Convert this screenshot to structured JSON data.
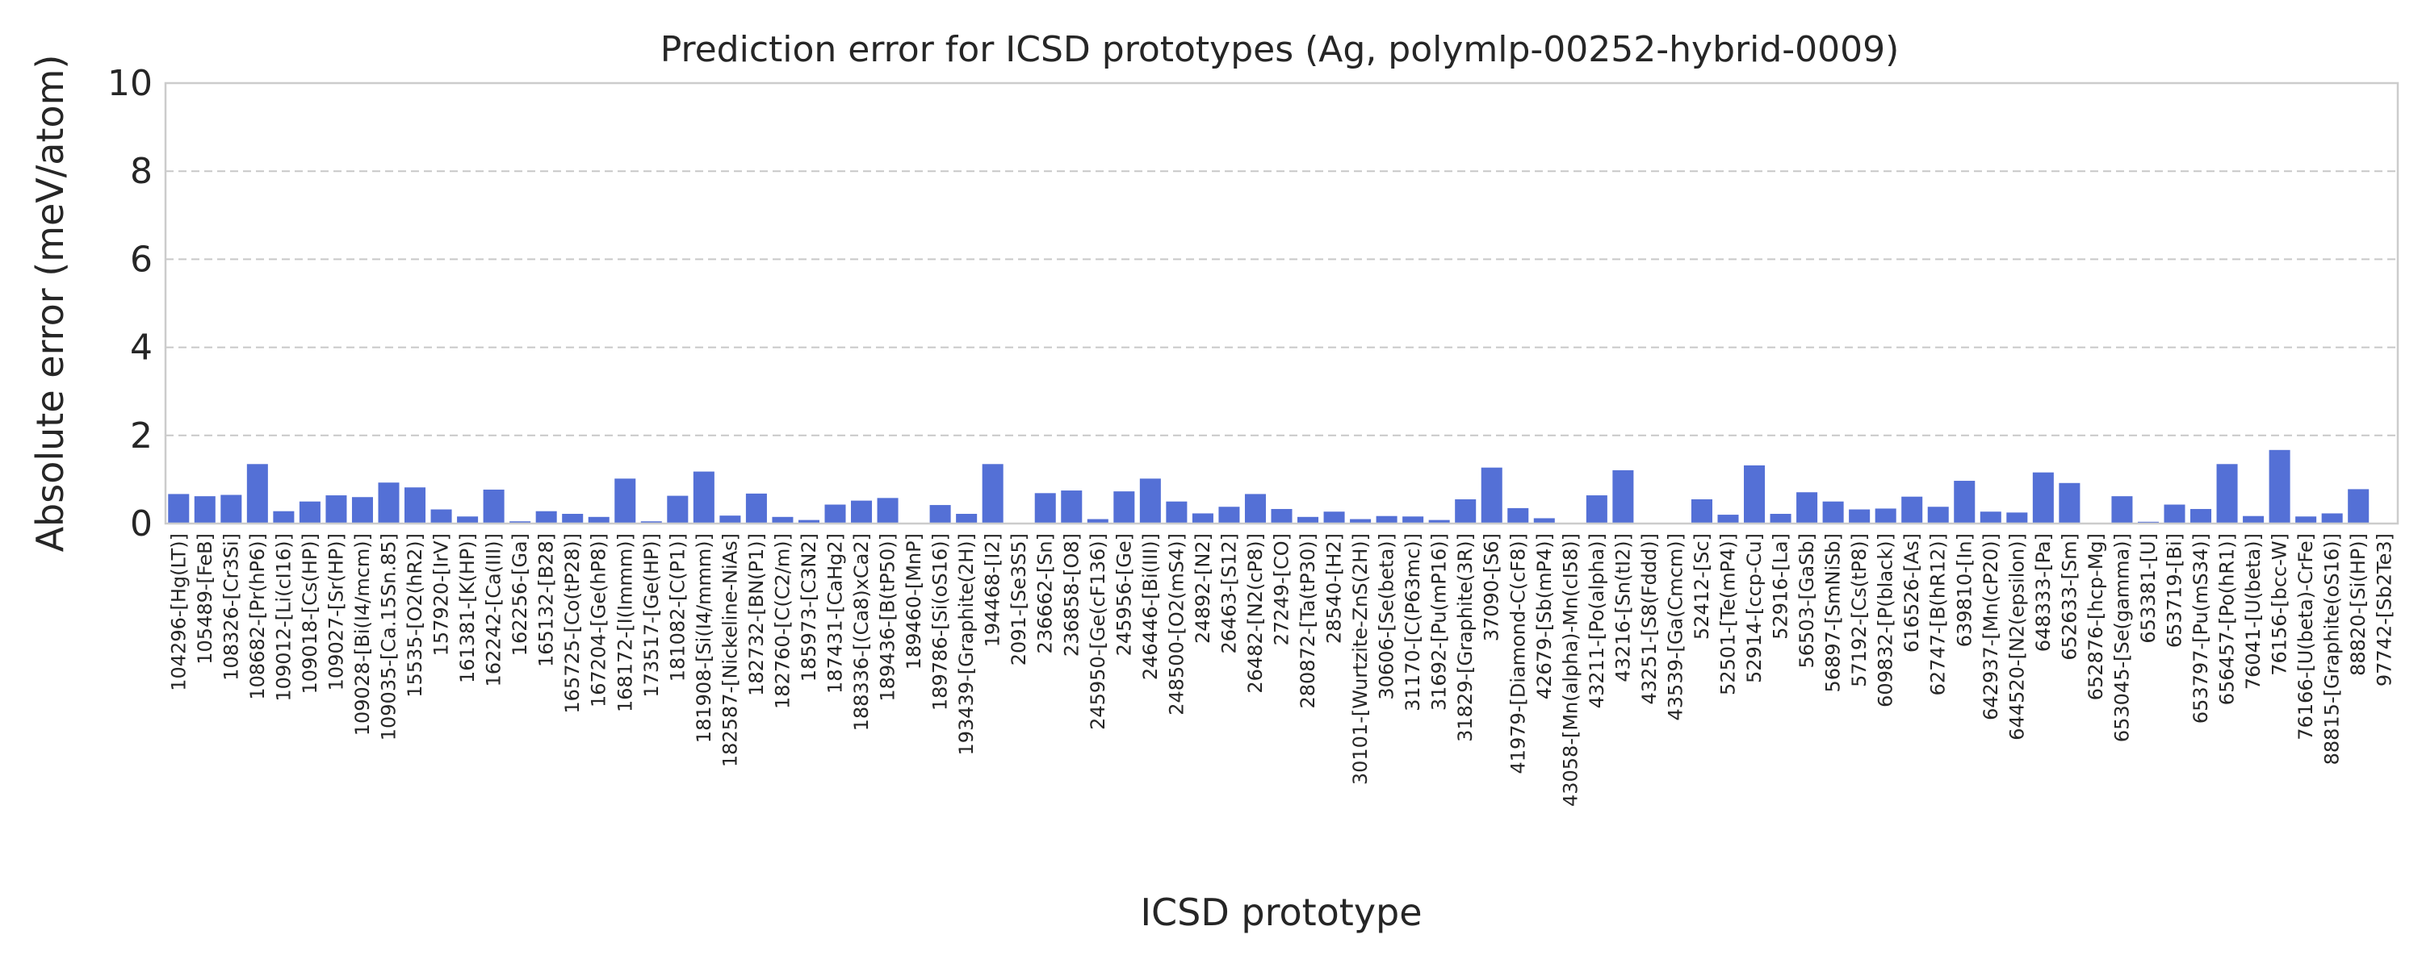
{
  "chart_data": {
    "type": "bar",
    "title": "Prediction error for ICSD prototypes (Ag, polymlp-00252-hybrid-0009)",
    "xlabel": "ICSD prototype",
    "ylabel": "Absolute error (meV/atom)",
    "ylim": [
      0,
      10
    ],
    "yticks": [
      "0",
      "2",
      "4",
      "6",
      "8",
      "10"
    ],
    "grid": "y-dashed",
    "bar_color": "#5470d6",
    "categories": [
      "104296-[Hg(LT)]",
      "105489-[FeB]",
      "108326-[Cr3Si]",
      "108682-[Pr(hP6)]",
      "109012-[Li(cI16)]",
      "109018-[Cs(HP)]",
      "109027-[Sr(HP)]",
      "109028-[Bi(I4/mcm)]",
      "109035-[Ca.15Sn.85]",
      "15535-[O2(hR2)]",
      "157920-[IrV]",
      "161381-[K(HP)]",
      "162242-[Ca(III)]",
      "162256-[Ga]",
      "165132-[B28]",
      "165725-[Co(tP28)]",
      "167204-[Ge(hP8)]",
      "168172-[I(Immm)]",
      "173517-[Ge(HP)]",
      "181082-[C(P1)]",
      "181908-[Si(I4/mmm)]",
      "182587-[Nickeline-NiAs]",
      "182732-[BN(P1)]",
      "182760-[C(C2/m)]",
      "185973-[C3N2]",
      "187431-[CaHg2]",
      "188336-[(Ca8)xCa2]",
      "189436-[B(tP50)]",
      "189460-[MnP]",
      "189786-[Si(oS16)]",
      "193439-[Graphite(2H)]",
      "194468-[I2]",
      "2091-[Se3S5]",
      "236662-[Sn]",
      "236858-[O8]",
      "245950-[Ge(cF136)]",
      "245956-[Ge]",
      "246446-[Bi(III)]",
      "248500-[O2(mS4)]",
      "24892-[N2]",
      "26463-[S12]",
      "26482-[N2(cP8)]",
      "27249-[CO]",
      "280872-[Ta(tP30)]",
      "28540-[H2]",
      "30101-[Wurtzite-ZnS(2H)]",
      "30606-[Se(beta)]",
      "31170-[C(P63mc)]",
      "31692-[Pu(mP16)]",
      "31829-[Graphite(3R)]",
      "37090-[S6]",
      "41979-[Diamond-C(cF8)]",
      "42679-[Sb(mP4)]",
      "43058-[Mn(alpha)-Mn(cI58)]",
      "43211-[Po(alpha)]",
      "43216-[Sn(tI2)]",
      "43251-[S8(Fddd)]",
      "43539-[Ga(Cmcm)]",
      "52412-[Sc]",
      "52501-[Te(mP4)]",
      "52914-[ccp-Cu]",
      "52916-[La]",
      "56503-[GaSb]",
      "56897-[SmNiSb]",
      "57192-[Cs(tP8)]",
      "609832-[P(black)]",
      "616526-[As]",
      "62747-[B(hR12)]",
      "639810-[In]",
      "642937-[Mn(cP20)]",
      "644520-[N2(epsilon)]",
      "648333-[Pa]",
      "652633-[Sm]",
      "652876-[hcp-Mg]",
      "653045-[Se(gamma)]",
      "653381-[U]",
      "653719-[Bi]",
      "653797-[Pu(mS34)]",
      "656457-[Po(hR1)]",
      "76041-[U(beta)]",
      "76156-[bcc-W]",
      "76166-[U(beta)-CrFe]",
      "88815-[Graphite(oS16)]",
      "88820-[Si(HP)]",
      "97742-[Sb2Te3]"
    ],
    "values": [
      0.67,
      0.62,
      0.65,
      1.35,
      0.28,
      0.5,
      0.64,
      0.6,
      0.93,
      0.82,
      0.32,
      0.16,
      0.77,
      0.05,
      0.28,
      0.22,
      0.15,
      1.02,
      0.05,
      0.63,
      1.18,
      0.18,
      0.68,
      0.15,
      0.08,
      0.43,
      0.52,
      0.58,
      0.0,
      0.42,
      0.22,
      1.35,
      0.0,
      0.69,
      0.75,
      0.1,
      0.73,
      1.02,
      0.5,
      0.23,
      0.38,
      0.67,
      0.33,
      0.15,
      0.27,
      0.1,
      0.17,
      0.16,
      0.08,
      0.55,
      1.27,
      0.35,
      0.12,
      0.0,
      0.64,
      1.21,
      0.0,
      0.0,
      0.55,
      0.2,
      1.32,
      0.22,
      0.71,
      0.5,
      0.32,
      0.34,
      0.61,
      0.38,
      0.97,
      0.27,
      0.25,
      1.16,
      0.92,
      0.0,
      0.62,
      0.04,
      0.43,
      0.33,
      1.35,
      0.17,
      1.67,
      0.16,
      0.23,
      0.78,
      0.0
    ]
  }
}
